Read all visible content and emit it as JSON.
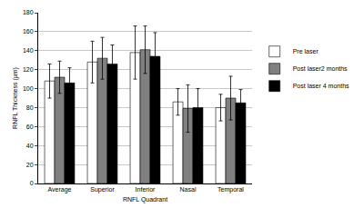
{
  "chart_data": {
    "type": "bar",
    "x_label": "RNFL Quadrant",
    "y_label": "RNFL Thickness (µm)",
    "categories": [
      "Average",
      "Superior",
      "Inferior",
      "Nasal",
      "Temporal"
    ],
    "series": [
      {
        "name": "Pre laser",
        "color": "#ffffff",
        "values": [
          108,
          128,
          138,
          86,
          80
        ],
        "error": [
          18,
          22,
          28,
          14,
          14
        ]
      },
      {
        "name": "Post laser2 months",
        "color": "#808080",
        "values": [
          112,
          132,
          141,
          79,
          90
        ],
        "error": [
          17,
          22,
          25,
          25,
          23
        ]
      },
      {
        "name": "Post laser 4 months",
        "color": "#000000",
        "values": [
          106,
          126,
          134,
          80,
          85
        ],
        "error": [
          16,
          20,
          25,
          20,
          14
        ]
      }
    ],
    "ylim": [
      0,
      180
    ],
    "yticks": [
      0,
      20,
      40,
      60,
      80,
      100,
      120,
      140,
      160,
      180
    ],
    "grid": true,
    "legend": "right"
  }
}
